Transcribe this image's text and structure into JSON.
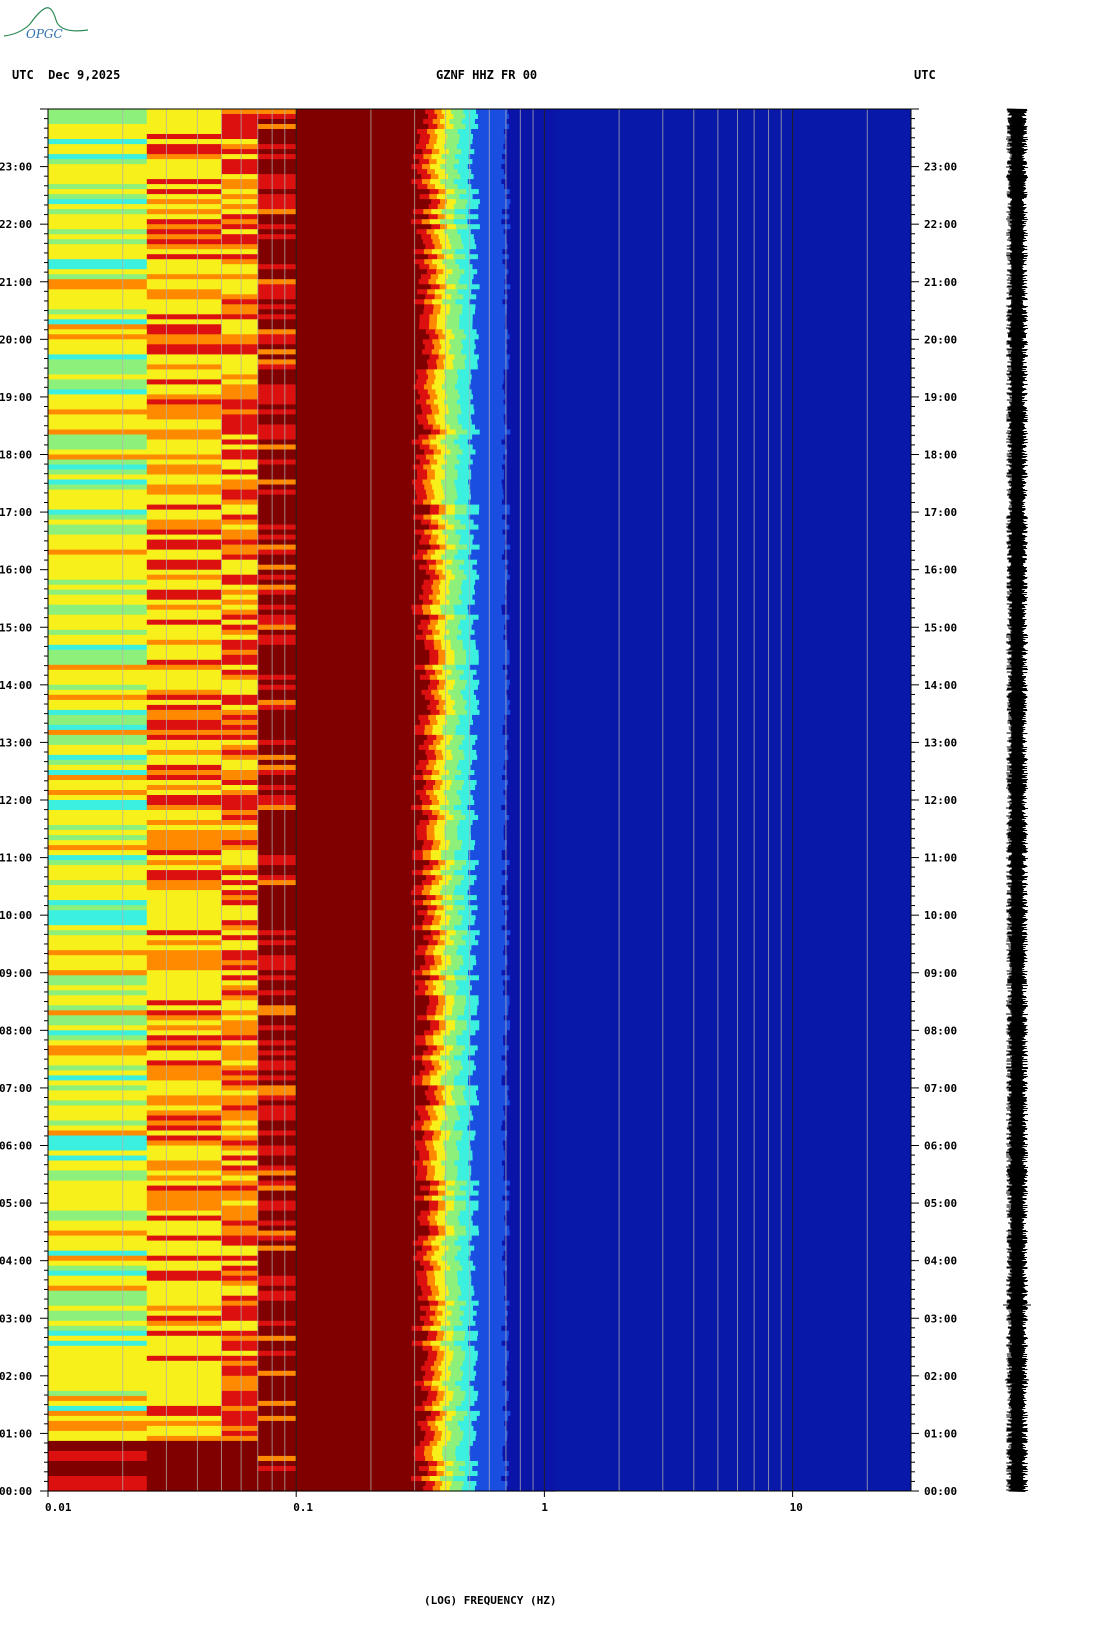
{
  "header": {
    "left": "UTC  Dec 9,2025",
    "center": "GZNF HHZ FR 00",
    "right": "UTC"
  },
  "logo": {
    "text": "OPGC",
    "color": "#2e8b57"
  },
  "colors": {
    "dark_red": "#800000",
    "red": "#dd1010",
    "orange": "#ff8a00",
    "yellow": "#f7f01a",
    "green": "#8cf07a",
    "cyan": "#3cf0e0",
    "blue": "#1a4ee0",
    "navy": "#0a14a8",
    "background_blue": "#0818a8"
  },
  "chart_data": {
    "type": "heatmap",
    "title": "GZNF HHZ FR 00",
    "xlabel": "(LOG) FREQUENCY (HZ)",
    "x_scale": "log",
    "xlim": [
      0.01,
      30
    ],
    "x_ticks": [
      {
        "value": 0.01,
        "label": "0.01"
      },
      {
        "value": 0.1,
        "label": "0.1"
      },
      {
        "value": 1,
        "label": "1"
      },
      {
        "value": 10,
        "label": "10"
      }
    ],
    "ylabel": "UTC",
    "ylim_hours": [
      0,
      24
    ],
    "y_ticks": [
      "00:00",
      "01:00",
      "02:00",
      "03:00",
      "04:00",
      "05:00",
      "06:00",
      "07:00",
      "08:00",
      "09:00",
      "10:00",
      "11:00",
      "12:00",
      "13:00",
      "14:00",
      "15:00",
      "16:00",
      "17:00",
      "18:00",
      "19:00",
      "20:00",
      "21:00",
      "22:00",
      "23:00"
    ],
    "gridlines_hz": [
      0.02,
      0.03,
      0.04,
      0.05,
      0.06,
      0.07,
      0.08,
      0.09,
      0.2,
      0.3,
      0.4,
      0.5,
      0.6,
      0.7,
      0.8,
      0.9,
      2,
      3,
      4,
      5,
      6,
      7,
      8,
      9,
      20
    ],
    "bands": [
      {
        "from_hz": 0.01,
        "to_hz": 0.025,
        "dominant": "yellow-green"
      },
      {
        "from_hz": 0.025,
        "to_hz": 0.05,
        "dominant": "orange-yellow"
      },
      {
        "from_hz": 0.05,
        "to_hz": 0.07,
        "dominant": "yellow-red"
      },
      {
        "from_hz": 0.07,
        "to_hz": 0.1,
        "dominant": "red"
      },
      {
        "from_hz": 0.1,
        "to_hz": 0.3,
        "dominant": "dark-red"
      },
      {
        "from_hz": 0.3,
        "to_hz": 0.37,
        "dominant": "red-orange"
      },
      {
        "from_hz": 0.37,
        "to_hz": 0.5,
        "dominant": "yellow-cyan"
      },
      {
        "from_hz": 0.5,
        "to_hz": 1,
        "dominant": "blue"
      },
      {
        "from_hz": 1,
        "to_hz": 30,
        "dominant": "navy"
      }
    ],
    "grid": true,
    "seismogram_trace": true
  }
}
